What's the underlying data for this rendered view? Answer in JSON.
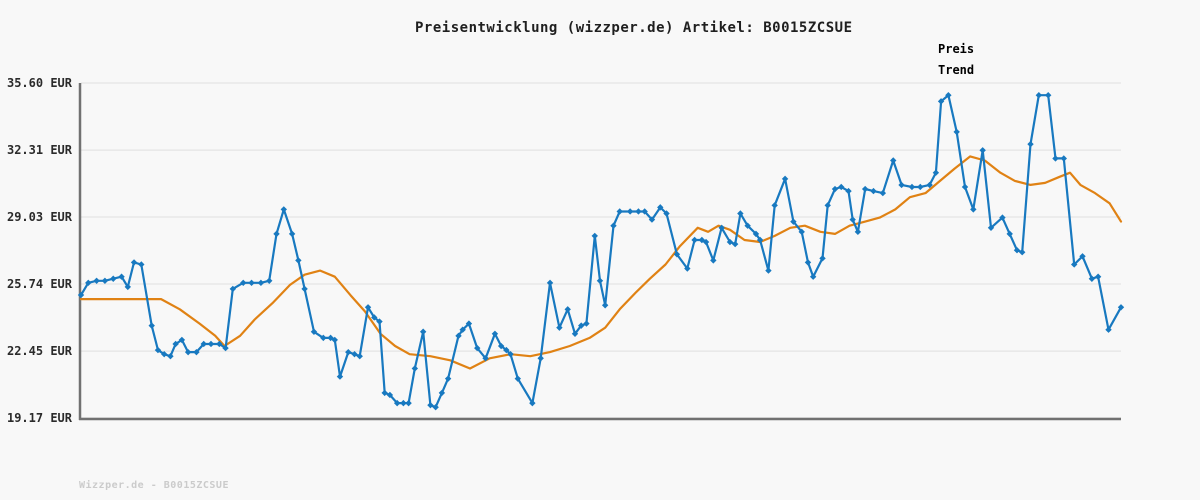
{
  "page": {
    "footer": "Wizzper.de - B0015ZCSUE"
  },
  "colors": {
    "preis": "#1879c0",
    "trend": "#e08214",
    "grid": "#e4e4e4",
    "axis": "#717171",
    "title_text": "#1f1f1f",
    "footer_text": "#cbcbcb",
    "background": "#f8f8f8"
  },
  "chart_data": {
    "type": "line",
    "title": "Preisentwicklung (wizzper.de) Artikel: B0015ZCSUE",
    "currency": "EUR",
    "grid": true,
    "legend_position": "top-right",
    "ylim": [
      19.17,
      35.6
    ],
    "xlabel": "",
    "ylabel": "",
    "x_axis": {
      "tick_labels_visible": false,
      "unit": "percent_of_time_range"
    },
    "y_axis": {
      "tick_labels": [
        "35.60 EUR",
        "32.31 EUR",
        "29.03 EUR",
        "25.74 EUR",
        "22.45 EUR",
        "19.17 EUR"
      ],
      "tick_values": [
        35.6,
        32.31,
        29.03,
        25.74,
        22.45,
        19.17
      ]
    },
    "series": [
      {
        "name": "Preis",
        "color": "#1879c0",
        "marker": "diamond",
        "points": [
          [
            0,
            25.2
          ],
          [
            0.7,
            25.8
          ],
          [
            1.5,
            25.9
          ],
          [
            2.3,
            25.9
          ],
          [
            3.1,
            26
          ],
          [
            3.9,
            26.1
          ],
          [
            4.5,
            25.6
          ],
          [
            5.1,
            26.8
          ],
          [
            5.8,
            26.7
          ],
          [
            6.8,
            23.7
          ],
          [
            7.4,
            22.5
          ],
          [
            8,
            22.3
          ],
          [
            8.6,
            22.2
          ],
          [
            9.1,
            22.8
          ],
          [
            9.7,
            23
          ],
          [
            10.3,
            22.4
          ],
          [
            11.1,
            22.4
          ],
          [
            11.8,
            22.8
          ],
          [
            12.5,
            22.8
          ],
          [
            13.3,
            22.8
          ],
          [
            13.9,
            22.6
          ],
          [
            14.6,
            25.5
          ],
          [
            15.6,
            25.8
          ],
          [
            16.4,
            25.8
          ],
          [
            17.3,
            25.8
          ],
          [
            18.1,
            25.9
          ],
          [
            18.8,
            28.2
          ],
          [
            19.5,
            29.4
          ],
          [
            20.3,
            28.2
          ],
          [
            20.9,
            26.9
          ],
          [
            21.5,
            25.5
          ],
          [
            22.4,
            23.4
          ],
          [
            23.3,
            23.1
          ],
          [
            24,
            23.1
          ],
          [
            24.4,
            23
          ],
          [
            24.9,
            21.2
          ],
          [
            25.7,
            22.4
          ],
          [
            26.3,
            22.3
          ],
          [
            26.8,
            22.2
          ],
          [
            27.6,
            24.6
          ],
          [
            28.2,
            24.1
          ],
          [
            28.7,
            23.9
          ],
          [
            29.2,
            20.4
          ],
          [
            29.7,
            20.3
          ],
          [
            30.4,
            19.9
          ],
          [
            31,
            19.9
          ],
          [
            31.5,
            19.9
          ],
          [
            32.1,
            21.6
          ],
          [
            32.9,
            23.4
          ],
          [
            33.6,
            19.8
          ],
          [
            34.1,
            19.7
          ],
          [
            34.7,
            20.4
          ],
          [
            35.3,
            21.1
          ],
          [
            36.3,
            23.2
          ],
          [
            36.7,
            23.5
          ],
          [
            37.3,
            23.8
          ],
          [
            38.1,
            22.6
          ],
          [
            38.9,
            22.1
          ],
          [
            39.8,
            23.3
          ],
          [
            40.4,
            22.7
          ],
          [
            40.9,
            22.5
          ],
          [
            41.3,
            22.3
          ],
          [
            42,
            21.1
          ],
          [
            43.4,
            19.9
          ],
          [
            44.2,
            22.1
          ],
          [
            45.1,
            25.8
          ],
          [
            46,
            23.6
          ],
          [
            46.8,
            24.5
          ],
          [
            47.5,
            23.3
          ],
          [
            48.1,
            23.7
          ],
          [
            48.6,
            23.8
          ],
          [
            49.4,
            28.1
          ],
          [
            49.9,
            25.9
          ],
          [
            50.4,
            24.7
          ],
          [
            51.2,
            28.6
          ],
          [
            51.8,
            29.3
          ],
          [
            52.8,
            29.3
          ],
          [
            53.6,
            29.3
          ],
          [
            54.2,
            29.3
          ],
          [
            54.9,
            28.9
          ],
          [
            55.7,
            29.5
          ],
          [
            56.3,
            29.2
          ],
          [
            57.3,
            27.2
          ],
          [
            58.3,
            26.5
          ],
          [
            59,
            27.9
          ],
          [
            59.7,
            27.9
          ],
          [
            60.1,
            27.8
          ],
          [
            60.8,
            26.9
          ],
          [
            61.6,
            28.5
          ],
          [
            62.4,
            27.8
          ],
          [
            62.9,
            27.7
          ],
          [
            63.4,
            29.2
          ],
          [
            64.1,
            28.6
          ],
          [
            64.9,
            28.2
          ],
          [
            65.3,
            27.9
          ],
          [
            66.1,
            26.4
          ],
          [
            66.7,
            29.6
          ],
          [
            67.7,
            30.9
          ],
          [
            68.5,
            28.8
          ],
          [
            69.3,
            28.3
          ],
          [
            69.9,
            26.8
          ],
          [
            70.4,
            26.1
          ],
          [
            71.3,
            27
          ],
          [
            71.8,
            29.6
          ],
          [
            72.5,
            30.4
          ],
          [
            73.1,
            30.5
          ],
          [
            73.8,
            30.3
          ],
          [
            74.2,
            28.9
          ],
          [
            74.7,
            28.3
          ],
          [
            75.4,
            30.4
          ],
          [
            76.2,
            30.3
          ],
          [
            77.1,
            30.2
          ],
          [
            78.1,
            31.8
          ],
          [
            78.9,
            30.6
          ],
          [
            79.9,
            30.5
          ],
          [
            80.7,
            30.5
          ],
          [
            81.6,
            30.6
          ],
          [
            82.2,
            31.2
          ],
          [
            82.7,
            34.7
          ],
          [
            83.4,
            35
          ],
          [
            84.2,
            33.2
          ],
          [
            85,
            30.5
          ],
          [
            85.8,
            29.4
          ],
          [
            86.7,
            32.3
          ],
          [
            87.5,
            28.5
          ],
          [
            88.6,
            29
          ],
          [
            89.3,
            28.2
          ],
          [
            90,
            27.4
          ],
          [
            90.5,
            27.3
          ],
          [
            91.3,
            32.6
          ],
          [
            92.1,
            35
          ],
          [
            93,
            35
          ],
          [
            93.7,
            31.9
          ],
          [
            94.5,
            31.9
          ],
          [
            95.5,
            26.7
          ],
          [
            96.3,
            27.1
          ],
          [
            97.2,
            26
          ],
          [
            97.8,
            26.1
          ],
          [
            98.8,
            23.5
          ],
          [
            100,
            24.6
          ]
        ]
      },
      {
        "name": "Trend",
        "color": "#e08214",
        "marker": "none",
        "points": [
          [
            0,
            25
          ],
          [
            3.8,
            25
          ],
          [
            7.7,
            25
          ],
          [
            9.5,
            24.5
          ],
          [
            11.4,
            23.8
          ],
          [
            12.9,
            23.2
          ],
          [
            13.8,
            22.7
          ],
          [
            15.3,
            23.2
          ],
          [
            16.7,
            24
          ],
          [
            18.4,
            24.8
          ],
          [
            20.1,
            25.7
          ],
          [
            21.5,
            26.2
          ],
          [
            23,
            26.4
          ],
          [
            24.4,
            26.1
          ],
          [
            25.9,
            25.2
          ],
          [
            27.3,
            24.4
          ],
          [
            28.8,
            23.3
          ],
          [
            30.2,
            22.7
          ],
          [
            31.6,
            22.3
          ],
          [
            33.6,
            22.2
          ],
          [
            35.5,
            22
          ],
          [
            37.4,
            21.6
          ],
          [
            39.3,
            22.1
          ],
          [
            41.3,
            22.3
          ],
          [
            43.2,
            22.2
          ],
          [
            45.1,
            22.4
          ],
          [
            47,
            22.7
          ],
          [
            48.9,
            23.1
          ],
          [
            50.4,
            23.6
          ],
          [
            51.8,
            24.5
          ],
          [
            53.3,
            25.3
          ],
          [
            54.7,
            26
          ],
          [
            56.2,
            26.7
          ],
          [
            57.6,
            27.6
          ],
          [
            59.3,
            28.5
          ],
          [
            60.3,
            28.3
          ],
          [
            61.3,
            28.6
          ],
          [
            62.4,
            28.4
          ],
          [
            63.8,
            27.9
          ],
          [
            65.3,
            27.8
          ],
          [
            66.7,
            28.1
          ],
          [
            68.2,
            28.5
          ],
          [
            69.6,
            28.6
          ],
          [
            71.1,
            28.3
          ],
          [
            72.5,
            28.2
          ],
          [
            73.9,
            28.6
          ],
          [
            75.4,
            28.8
          ],
          [
            76.8,
            29
          ],
          [
            78.3,
            29.4
          ],
          [
            79.7,
            30
          ],
          [
            81.2,
            30.2
          ],
          [
            82.6,
            30.8
          ],
          [
            84,
            31.4
          ],
          [
            85.5,
            32
          ],
          [
            86.9,
            31.8
          ],
          [
            88.4,
            31.2
          ],
          [
            89.8,
            30.8
          ],
          [
            91.3,
            30.6
          ],
          [
            92.7,
            30.7
          ],
          [
            94.1,
            31
          ],
          [
            95.1,
            31.2
          ],
          [
            96.1,
            30.6
          ],
          [
            97.5,
            30.2
          ],
          [
            98.9,
            29.7
          ],
          [
            100,
            28.8
          ]
        ]
      }
    ]
  }
}
